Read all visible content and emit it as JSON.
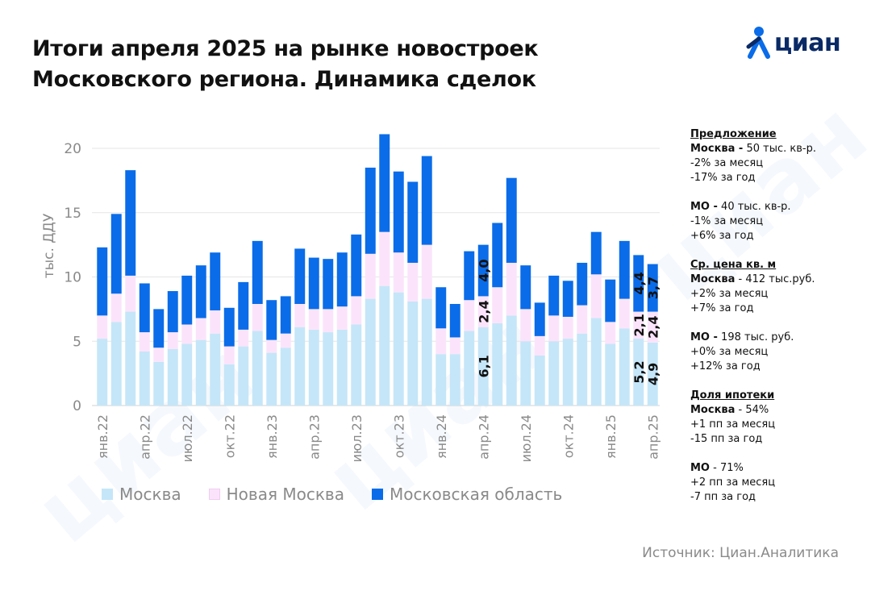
{
  "title": {
    "line1": "Итоги апреля 2025 на рынке новостроек",
    "line2": "Московского региона. Динамика сделок"
  },
  "logo": {
    "text": "циан",
    "icon": "cian-person-icon"
  },
  "watermark": "циан",
  "colors": {
    "moscow": "#c5e6f8",
    "new_moscow": "#fbe4fb",
    "mo": "#0a6ce8",
    "grid": "#e3e3e3",
    "tick": "#8a8a8a",
    "logo_blue": "#0a6ce8",
    "logo_dark": "#0a2a66"
  },
  "chart_data": {
    "type": "bar",
    "stacked": true,
    "ylabel": "тыс. ДДУ",
    "ylim": [
      0,
      22
    ],
    "yticks": [
      0,
      5,
      10,
      15,
      20
    ],
    "grid": true,
    "categories": [
      "янв.22",
      "фев.22",
      "мар.22",
      "апр.22",
      "май.22",
      "июн.22",
      "июл.22",
      "авг.22",
      "сен.22",
      "окт.22",
      "ноя.22",
      "дек.22",
      "янв.23",
      "фев.23",
      "мар.23",
      "апр.23",
      "май.23",
      "июн.23",
      "июл.23",
      "авг.23",
      "сен.23",
      "окт.23",
      "ноя.23",
      "дек.23",
      "янв.24",
      "фев.24",
      "мар.24",
      "апр.24",
      "май.24",
      "июн.24",
      "июл.24",
      "авг.24",
      "сен.24",
      "окт.24",
      "ноя.24",
      "дек.24",
      "янв.25",
      "фев.25",
      "мар.25",
      "апр.25"
    ],
    "xtick_labels": [
      "янв.22",
      "апр.22",
      "июл.22",
      "окт.22",
      "янв.23",
      "апр.23",
      "июл.23",
      "окт.23",
      "янв.24",
      "апр.24",
      "июл.24",
      "окт.24",
      "янв.25",
      "апр.25"
    ],
    "series": [
      {
        "name": "Москва",
        "color": "#c5e6f8",
        "values": [
          5.2,
          6.5,
          7.3,
          4.2,
          3.4,
          4.4,
          4.8,
          5.1,
          5.6,
          3.2,
          4.6,
          5.8,
          4.1,
          4.5,
          6.1,
          5.9,
          5.7,
          5.9,
          6.3,
          8.3,
          9.3,
          8.8,
          8.1,
          8.3,
          4.0,
          4.0,
          5.8,
          6.1,
          6.4,
          7.0,
          5.0,
          3.9,
          5.0,
          5.2,
          5.6,
          6.8,
          4.8,
          6.0,
          5.2,
          4.9
        ]
      },
      {
        "name": "Новая Москва",
        "color": "#fbe4fb",
        "values": [
          1.8,
          2.2,
          2.8,
          1.5,
          1.1,
          1.3,
          1.5,
          1.7,
          1.8,
          1.4,
          1.3,
          2.1,
          1.0,
          1.1,
          1.8,
          1.6,
          1.8,
          1.8,
          2.2,
          3.5,
          4.2,
          3.1,
          3.0,
          4.2,
          2.0,
          1.3,
          2.4,
          2.4,
          2.8,
          4.1,
          2.5,
          1.5,
          2.0,
          1.7,
          2.2,
          3.4,
          1.7,
          2.3,
          2.1,
          2.4
        ]
      },
      {
        "name": "Московская область",
        "color": "#0a6ce8",
        "values": [
          5.3,
          6.2,
          8.2,
          3.8,
          3.0,
          3.2,
          3.8,
          4.1,
          4.5,
          3.0,
          3.7,
          4.9,
          3.1,
          2.9,
          4.3,
          4.0,
          3.9,
          4.2,
          4.8,
          6.7,
          7.6,
          6.3,
          6.3,
          6.9,
          3.2,
          2.6,
          3.8,
          4.0,
          5.0,
          6.6,
          3.4,
          2.6,
          3.1,
          2.8,
          3.3,
          3.3,
          3.3,
          4.5,
          4.4,
          3.7
        ]
      }
    ],
    "data_labels": [
      {
        "index": 27,
        "values": [
          "6,1",
          "2,4",
          "4,0"
        ]
      },
      {
        "index": 38,
        "values": [
          "5,2",
          "2,1",
          "4,4"
        ]
      },
      {
        "index": 39,
        "values": [
          "4,9",
          "2,4",
          "3,7"
        ]
      }
    ]
  },
  "legend": [
    {
      "label": "Москва",
      "color": "#c5e6f8"
    },
    {
      "label": "Новая Москва",
      "color": "#fbe4fb"
    },
    {
      "label": "Московская область",
      "color": "#0a6ce8"
    }
  ],
  "side": {
    "supply": {
      "header": "Предложение",
      "moscow_label": "Москва -",
      "moscow_value": " 50 тыс. кв-р.",
      "moscow_m": "-2% за месяц",
      "moscow_y": "-17% за год",
      "mo_label": "МО -",
      "mo_value": " 40 тыс. кв-р.",
      "mo_m": "-1% за месяц",
      "mo_y": "+6% за год"
    },
    "price": {
      "header": "Ср. цена кв. м",
      "moscow_label": "Москва",
      "moscow_value": " - 412 тыс.руб.",
      "moscow_m": "+2% за месяц",
      "moscow_y": "+7% за год",
      "mo_label": "МО -",
      "mo_value": " 198 тыс. руб.",
      "mo_m": "+0% за месяц",
      "mo_y": "+12% за год"
    },
    "mortgage": {
      "header": "Доля ипотеки",
      "moscow_label": "Москва",
      "moscow_value": " - 54%",
      "moscow_m": "+1 пп за месяц",
      "moscow_y": "-15 пп за год",
      "mo_label": "МО",
      "mo_value": " - 71%",
      "mo_m": "+2 пп за месяц",
      "mo_y": "-7 пп за год"
    }
  },
  "source": "Источник: Циан.Аналитика"
}
